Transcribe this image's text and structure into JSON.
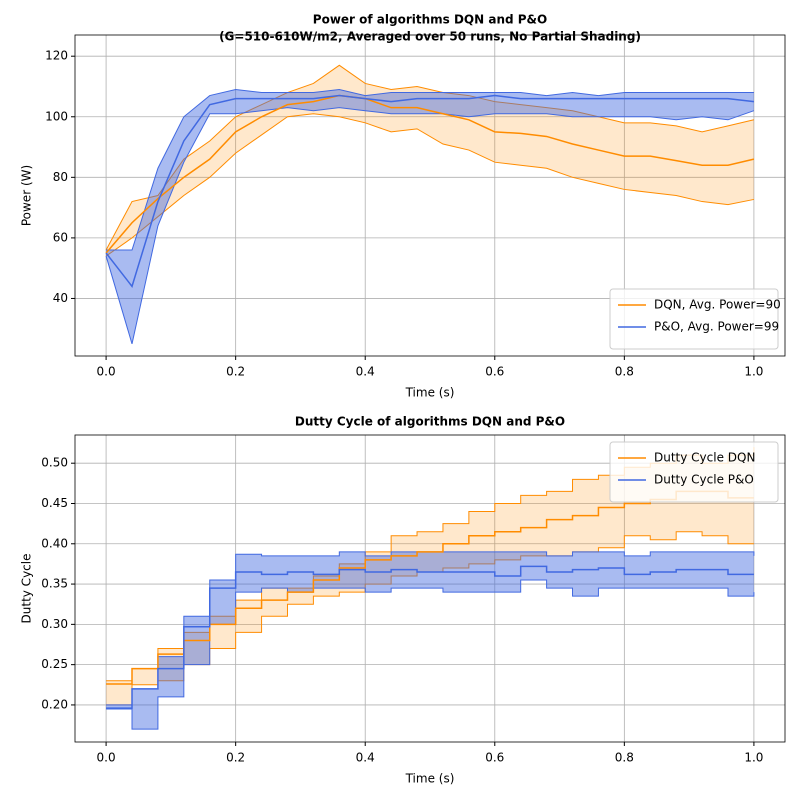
{
  "chart_data": [
    {
      "type": "line",
      "title": [
        "Power of algorithms DQN and P&O",
        "(G=510-610W/m2, Averaged over 50 runs, No Partial Shading)"
      ],
      "xlabel": "Time (s)",
      "ylabel": "Power (W)",
      "x": [
        0,
        0.04,
        0.08,
        0.12,
        0.16,
        0.2,
        0.24,
        0.28,
        0.32,
        0.36,
        0.4,
        0.44,
        0.48,
        0.52,
        0.56,
        0.6,
        0.64,
        0.68,
        0.72,
        0.76,
        0.8,
        0.84,
        0.88,
        0.92,
        0.96,
        1.0
      ],
      "xlim": [
        -0.048,
        1.048
      ],
      "xticks": [
        {
          "value": 0,
          "label": "0.0"
        },
        0.2,
        0.4,
        0.6,
        0.8,
        {
          "value": 1,
          "label": "1.0"
        }
      ],
      "ylim": [
        21,
        127
      ],
      "yticks": [
        40,
        60,
        80,
        100,
        120
      ],
      "grid": true,
      "legend": "lower right",
      "drawstyle": "default",
      "series": [
        {
          "name": "DQN, Avg. Power=90",
          "color": "#ff8c00",
          "band_opacity": 0.2,
          "values": [
            55,
            65,
            73,
            80,
            86,
            95,
            100,
            104,
            105,
            107,
            106,
            103,
            103,
            101,
            99,
            95,
            94.5,
            93.5,
            91,
            89,
            87,
            87,
            85.5,
            84,
            84,
            86
          ],
          "upper": [
            56,
            72,
            74,
            86,
            92,
            100,
            104,
            108,
            111,
            117,
            111,
            109,
            110,
            108,
            107,
            105,
            104,
            103,
            102,
            100,
            98,
            98,
            97,
            95,
            97,
            99
          ],
          "lower": [
            54,
            60,
            67,
            74,
            80,
            88,
            94,
            100,
            101,
            100,
            98,
            95,
            96,
            91,
            89,
            85,
            84,
            83,
            80,
            78,
            76,
            75,
            74,
            72,
            71,
            72.7
          ]
        },
        {
          "name": "P&O, Avg. Power=99",
          "color": "#4169e1",
          "band_opacity": 0.45,
          "values": [
            55,
            44,
            72,
            92,
            104,
            106,
            106,
            106,
            106,
            107,
            106,
            105,
            106,
            106,
            106,
            107,
            106,
            106,
            106,
            106,
            106,
            106,
            106,
            106,
            106,
            105
          ],
          "upper": [
            56,
            56,
            83,
            100,
            107,
            109,
            108,
            108,
            108,
            109,
            107,
            108,
            108,
            108,
            108,
            108,
            108,
            107,
            108,
            107,
            108,
            108,
            108,
            108,
            108,
            108
          ],
          "lower": [
            54,
            25,
            64,
            85,
            101,
            101,
            102,
            103,
            102,
            103,
            102,
            101,
            101,
            101,
            100,
            101,
            101,
            101,
            100,
            100,
            100,
            100,
            99,
            100,
            99,
            102
          ]
        }
      ]
    },
    {
      "type": "line",
      "title": [
        "Dutty Cycle of algorithms DQN and P&O"
      ],
      "xlabel": "Time (s)",
      "ylabel": "Dutty Cycle",
      "x": [
        0,
        0.04,
        0.08,
        0.12,
        0.16,
        0.2,
        0.24,
        0.28,
        0.32,
        0.36,
        0.4,
        0.44,
        0.48,
        0.52,
        0.56,
        0.6,
        0.64,
        0.68,
        0.72,
        0.76,
        0.8,
        0.84,
        0.88,
        0.92,
        0.96,
        1.0
      ],
      "xlim": [
        -0.048,
        1.048
      ],
      "xticks": [
        {
          "value": 0,
          "label": "0.0"
        },
        0.2,
        0.4,
        0.6,
        0.8,
        {
          "value": 1,
          "label": "1.0"
        }
      ],
      "ylim": [
        0.154,
        0.535
      ],
      "yticks": [
        {
          "value": 0.2,
          "label": "0.20"
        },
        0.25,
        {
          "value": 0.3,
          "label": "0.30"
        },
        0.35,
        {
          "value": 0.4,
          "label": "0.40"
        },
        0.45,
        {
          "value": 0.5,
          "label": "0.50"
        }
      ],
      "grid": true,
      "legend": "upper right",
      "drawstyle": "steps-post",
      "series": [
        {
          "name": "Dutty Cycle DQN",
          "color": "#ff8c00",
          "band_opacity": 0.2,
          "values": [
            0.226,
            0.245,
            0.263,
            0.28,
            0.3,
            0.32,
            0.33,
            0.34,
            0.355,
            0.37,
            0.38,
            0.385,
            0.39,
            0.4,
            0.41,
            0.415,
            0.42,
            0.43,
            0.435,
            0.445,
            0.45,
            0.455,
            0.465,
            0.465,
            0.457,
            0.457
          ],
          "upper": [
            0.23,
            0.245,
            0.27,
            0.29,
            0.31,
            0.33,
            0.345,
            0.345,
            0.36,
            0.375,
            0.39,
            0.41,
            0.415,
            0.425,
            0.44,
            0.45,
            0.46,
            0.465,
            0.48,
            0.485,
            0.495,
            0.5,
            0.51,
            0.5,
            0.51,
            0.52
          ],
          "lower": [
            0.2,
            0.225,
            0.23,
            0.25,
            0.27,
            0.29,
            0.31,
            0.325,
            0.335,
            0.34,
            0.35,
            0.36,
            0.365,
            0.37,
            0.375,
            0.38,
            0.385,
            0.385,
            0.39,
            0.395,
            0.41,
            0.405,
            0.415,
            0.41,
            0.4,
            0.4
          ]
        },
        {
          "name": "Dutty Cycle P&O",
          "color": "#4169e1",
          "band_opacity": 0.45,
          "values": [
            0.196,
            0.22,
            0.245,
            0.297,
            0.345,
            0.365,
            0.362,
            0.365,
            0.362,
            0.368,
            0.365,
            0.368,
            0.365,
            0.365,
            0.365,
            0.36,
            0.372,
            0.365,
            0.368,
            0.37,
            0.362,
            0.365,
            0.368,
            0.368,
            0.362,
            0.362
          ],
          "upper": [
            0.2,
            0.22,
            0.26,
            0.31,
            0.355,
            0.387,
            0.385,
            0.385,
            0.385,
            0.39,
            0.385,
            0.39,
            0.39,
            0.39,
            0.39,
            0.39,
            0.39,
            0.385,
            0.39,
            0.39,
            0.385,
            0.39,
            0.39,
            0.39,
            0.39,
            0.385
          ],
          "lower": [
            0.195,
            0.17,
            0.21,
            0.25,
            0.3,
            0.34,
            0.345,
            0.34,
            0.345,
            0.345,
            0.34,
            0.345,
            0.345,
            0.34,
            0.34,
            0.34,
            0.355,
            0.345,
            0.335,
            0.345,
            0.345,
            0.345,
            0.345,
            0.345,
            0.335,
            0.34
          ]
        }
      ]
    }
  ]
}
